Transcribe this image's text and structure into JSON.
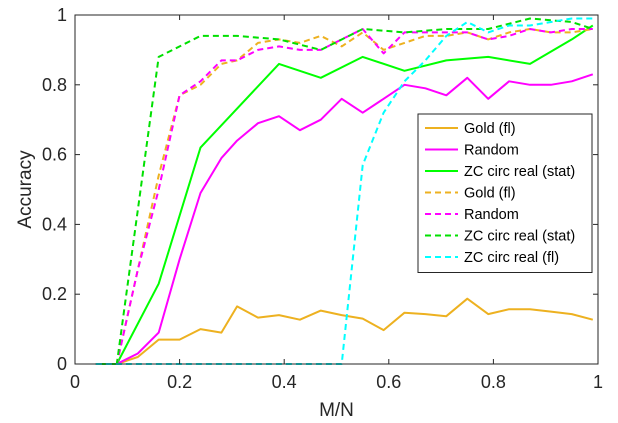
{
  "chart_data": {
    "type": "line",
    "xlabel": "M/N",
    "ylabel": "Accuracy",
    "xlim": [
      0,
      1
    ],
    "ylim": [
      0,
      1
    ],
    "xticks": [
      0,
      0.2,
      0.4,
      0.6,
      0.8,
      1
    ],
    "xtick_labels": [
      "0",
      "0.2",
      "0.4",
      "0.6",
      "0.8",
      "1"
    ],
    "yticks": [
      0,
      0.2,
      0.4,
      0.6,
      0.8,
      1
    ],
    "ytick_labels": [
      "0",
      "0.2",
      "0.4",
      "0.6",
      "0.8",
      "1"
    ],
    "grid": false,
    "legend_position": "right",
    "series": [
      {
        "name": "Gold (fl)",
        "color": "#EDB120",
        "style": "solid",
        "x": [
          0.04,
          0.08,
          0.12,
          0.16,
          0.2,
          0.24,
          0.28,
          0.31,
          0.35,
          0.39,
          0.43,
          0.47,
          0.51,
          0.55,
          0.59,
          0.63,
          0.67,
          0.71,
          0.75,
          0.79,
          0.83,
          0.87,
          0.91,
          0.95,
          0.99
        ],
        "y": [
          0,
          0,
          0.02,
          0.07,
          0.07,
          0.1,
          0.09,
          0.165,
          0.133,
          0.14,
          0.127,
          0.153,
          0.14,
          0.13,
          0.097,
          0.147,
          0.143,
          0.137,
          0.187,
          0.143,
          0.157,
          0.157,
          0.15,
          0.143,
          0.127
        ]
      },
      {
        "name": "Random",
        "color": "#FF00FF",
        "style": "solid",
        "x": [
          0.04,
          0.08,
          0.12,
          0.16,
          0.2,
          0.24,
          0.28,
          0.31,
          0.35,
          0.39,
          0.43,
          0.47,
          0.51,
          0.55,
          0.59,
          0.63,
          0.67,
          0.71,
          0.75,
          0.79,
          0.83,
          0.87,
          0.91,
          0.95,
          0.99
        ],
        "y": [
          0,
          0,
          0.03,
          0.09,
          0.3,
          0.49,
          0.59,
          0.64,
          0.69,
          0.71,
          0.67,
          0.7,
          0.76,
          0.72,
          0.76,
          0.8,
          0.79,
          0.77,
          0.82,
          0.76,
          0.81,
          0.8,
          0.8,
          0.81,
          0.83
        ]
      },
      {
        "name": "ZC circ real (stat)",
        "color": "#00FF00",
        "style": "solid",
        "x": [
          0.04,
          0.08,
          0.16,
          0.24,
          0.39,
          0.47,
          0.55,
          0.63,
          0.71,
          0.79,
          0.87,
          0.95,
          0.99
        ],
        "y": [
          0,
          0,
          0.23,
          0.62,
          0.86,
          0.82,
          0.88,
          0.84,
          0.87,
          0.88,
          0.86,
          0.93,
          0.97
        ]
      },
      {
        "name": "Gold (fl)",
        "color": "#EDB120",
        "style": "dashed",
        "x": [
          0.04,
          0.08,
          0.12,
          0.16,
          0.2,
          0.24,
          0.28,
          0.31,
          0.35,
          0.39,
          0.43,
          0.47,
          0.51,
          0.55,
          0.59,
          0.63,
          0.67,
          0.71,
          0.75,
          0.79,
          0.83,
          0.87,
          0.91,
          0.95,
          0.99
        ],
        "y": [
          0,
          0,
          0.27,
          0.54,
          0.77,
          0.8,
          0.86,
          0.87,
          0.92,
          0.93,
          0.92,
          0.94,
          0.91,
          0.95,
          0.9,
          0.92,
          0.94,
          0.94,
          0.95,
          0.93,
          0.95,
          0.96,
          0.95,
          0.95,
          0.96
        ]
      },
      {
        "name": "Random",
        "color": "#FF00FF",
        "style": "dashed",
        "x": [
          0.04,
          0.08,
          0.12,
          0.16,
          0.2,
          0.24,
          0.28,
          0.31,
          0.35,
          0.39,
          0.43,
          0.47,
          0.51,
          0.55,
          0.59,
          0.63,
          0.67,
          0.71,
          0.75,
          0.79,
          0.83,
          0.87,
          0.91,
          0.95,
          0.99
        ],
        "y": [
          0,
          0,
          0.27,
          0.5,
          0.77,
          0.81,
          0.87,
          0.87,
          0.9,
          0.91,
          0.9,
          0.9,
          0.93,
          0.96,
          0.89,
          0.95,
          0.95,
          0.95,
          0.95,
          0.93,
          0.94,
          0.96,
          0.95,
          0.96,
          0.96
        ]
      },
      {
        "name": "ZC circ real (stat)",
        "color": "#00E000",
        "style": "dashed",
        "x": [
          0.04,
          0.08,
          0.16,
          0.24,
          0.31,
          0.39,
          0.47,
          0.55,
          0.63,
          0.71,
          0.79,
          0.87,
          0.95,
          0.99
        ],
        "y": [
          0,
          0,
          0.88,
          0.94,
          0.94,
          0.93,
          0.9,
          0.96,
          0.95,
          0.96,
          0.96,
          0.99,
          0.98,
          0.96
        ]
      },
      {
        "name": "ZC circ real (fl)",
        "color": "#00FFFF",
        "style": "dashed",
        "x": [
          0.04,
          0.08,
          0.12,
          0.16,
          0.2,
          0.24,
          0.28,
          0.31,
          0.35,
          0.39,
          0.43,
          0.47,
          0.51,
          0.55,
          0.59,
          0.63,
          0.67,
          0.71,
          0.75,
          0.79,
          0.83,
          0.87,
          0.91,
          0.95,
          0.99
        ],
        "y": [
          0,
          0,
          0,
          0,
          0,
          0,
          0,
          0,
          0,
          0,
          0,
          0,
          0,
          0.57,
          0.72,
          0.81,
          0.87,
          0.94,
          0.98,
          0.95,
          0.97,
          0.97,
          0.98,
          0.99,
          0.99
        ]
      }
    ]
  }
}
